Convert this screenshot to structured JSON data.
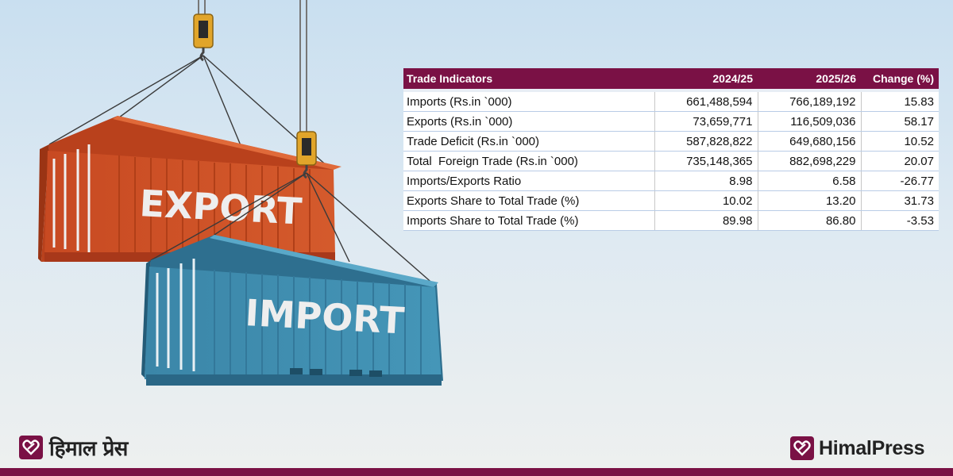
{
  "illustration": {
    "export_label": "EXPORT",
    "import_label": "IMPORT"
  },
  "table": {
    "headers": [
      "Trade Indicators",
      "2024/25",
      "2025/26",
      "Change (%)"
    ],
    "rows": [
      [
        "Imports (Rs.in `000)",
        "661,488,594",
        "766,189,192",
        "15.83"
      ],
      [
        "Exports (Rs.in `000)",
        "73,659,771",
        "116,509,036",
        "58.17"
      ],
      [
        "Trade Deficit (Rs.in `000)",
        "587,828,822",
        "649,680,156",
        "10.52"
      ],
      [
        "Total  Foreign Trade (Rs.in `000)",
        "735,148,365",
        "882,698,229",
        "20.07"
      ],
      [
        "Imports/Exports Ratio",
        "8.98",
        "6.58",
        "-26.77"
      ],
      [
        "Exports Share to Total Trade (%)",
        "10.02",
        "13.20",
        "31.73"
      ],
      [
        "Imports Share to Total Trade (%)",
        "89.98",
        "86.80",
        "-3.53"
      ]
    ]
  },
  "branding": {
    "nepali_name": "हिमाल प्रेस",
    "english_name": "HimalPress",
    "brand_color": "#7a1145",
    "logo_icon": "heart-logo-icon"
  }
}
